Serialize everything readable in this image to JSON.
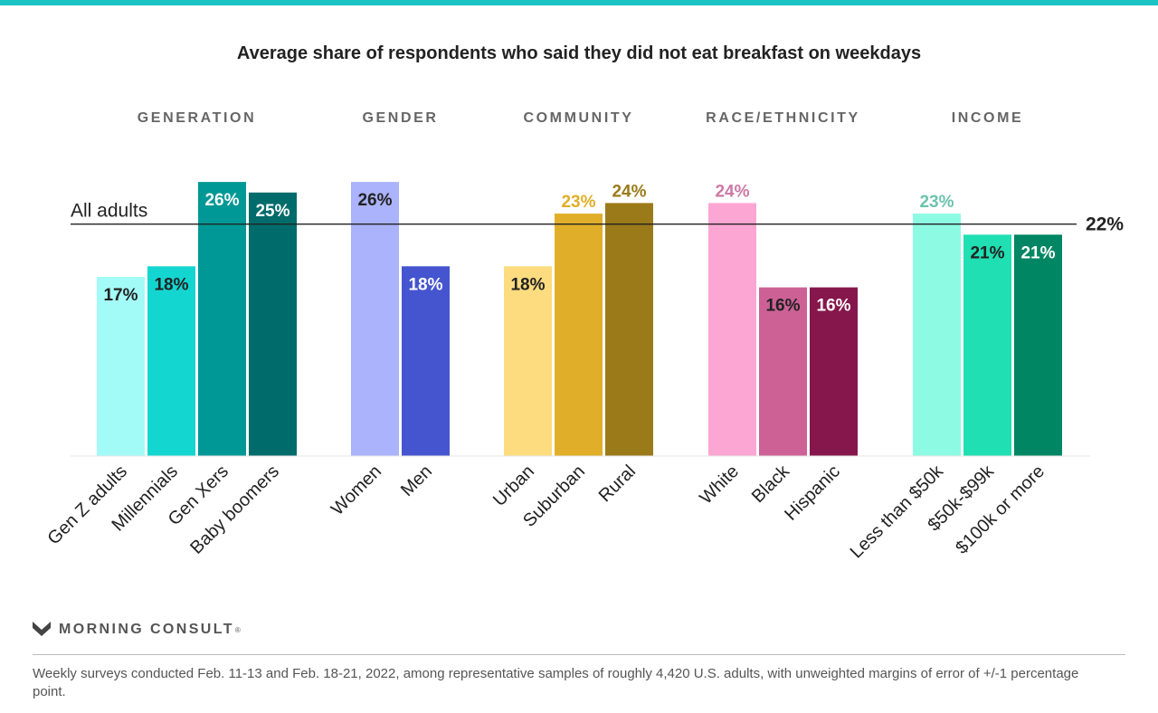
{
  "title": "Average share of respondents who said they did not eat breakfast on weekdays",
  "brand": {
    "name": "MORNING CONSULT",
    "reg": "®"
  },
  "note": "Weekly surveys conducted Feb. 11-13 and Feb. 18-21, 2022, among representative samples of roughly 4,420 U.S. adults, with unweighted margins of error of +/-1 percentage point.",
  "colors": {
    "accent_bar": "#1cc4c4",
    "reference_line": "#222222"
  },
  "chart_data": {
    "type": "bar",
    "title": "Average share of respondents who said they did not eat breakfast on weekdays",
    "unit": "%",
    "ylim": [
      0,
      26
    ],
    "grid": false,
    "reference_line": {
      "label": "All adults",
      "value": 22,
      "value_label": "22%"
    },
    "groups": [
      {
        "name": "GENERATION",
        "categories": [
          "Gen Z adults",
          "Millennials",
          "Gen Xers",
          "Baby boomers"
        ],
        "values": [
          17,
          18,
          26,
          25
        ],
        "value_labels": [
          "17%",
          "18%",
          "26%",
          "25%"
        ],
        "colors": [
          "#a3fbf7",
          "#14d6d0",
          "#009896",
          "#006b6b"
        ],
        "label_colors": [
          "#222222",
          "#222222",
          "#ffffff",
          "#ffffff"
        ]
      },
      {
        "name": "GENDER",
        "categories": [
          "Women",
          "Men"
        ],
        "values": [
          26,
          18
        ],
        "value_labels": [
          "26%",
          "18%"
        ],
        "colors": [
          "#aab3fb",
          "#4555cf"
        ],
        "label_colors": [
          "#222222",
          "#ffffff"
        ]
      },
      {
        "name": "COMMUNITY",
        "categories": [
          "Urban",
          "Suburban",
          "Rural"
        ],
        "values": [
          18,
          23,
          24
        ],
        "value_labels": [
          "18%",
          "23%",
          "24%"
        ],
        "colors": [
          "#fcdc7e",
          "#e0ae28",
          "#9b7a1a"
        ],
        "label_colors": [
          "#222222",
          "#e0ae28",
          "#9b7a1a"
        ]
      },
      {
        "name": "RACE/ETHNICITY",
        "categories": [
          "White",
          "Black",
          "Hispanic"
        ],
        "values": [
          24,
          16,
          16
        ],
        "value_labels": [
          "24%",
          "16%",
          "16%"
        ],
        "colors": [
          "#fca6d3",
          "#cd6196",
          "#86174c"
        ],
        "label_colors": [
          "#cd79a4",
          "#222222",
          "#ffffff"
        ]
      },
      {
        "name": "INCOME",
        "categories": [
          "Less than $50k",
          "$50k-$99k",
          "$100k or more"
        ],
        "values": [
          23,
          21,
          21
        ],
        "value_labels": [
          "23%",
          "21%",
          "21%"
        ],
        "colors": [
          "#8dfbe3",
          "#20dfb2",
          "#008662"
        ],
        "label_colors": [
          "#6cc3ad",
          "#222222",
          "#ffffff"
        ]
      }
    ]
  }
}
